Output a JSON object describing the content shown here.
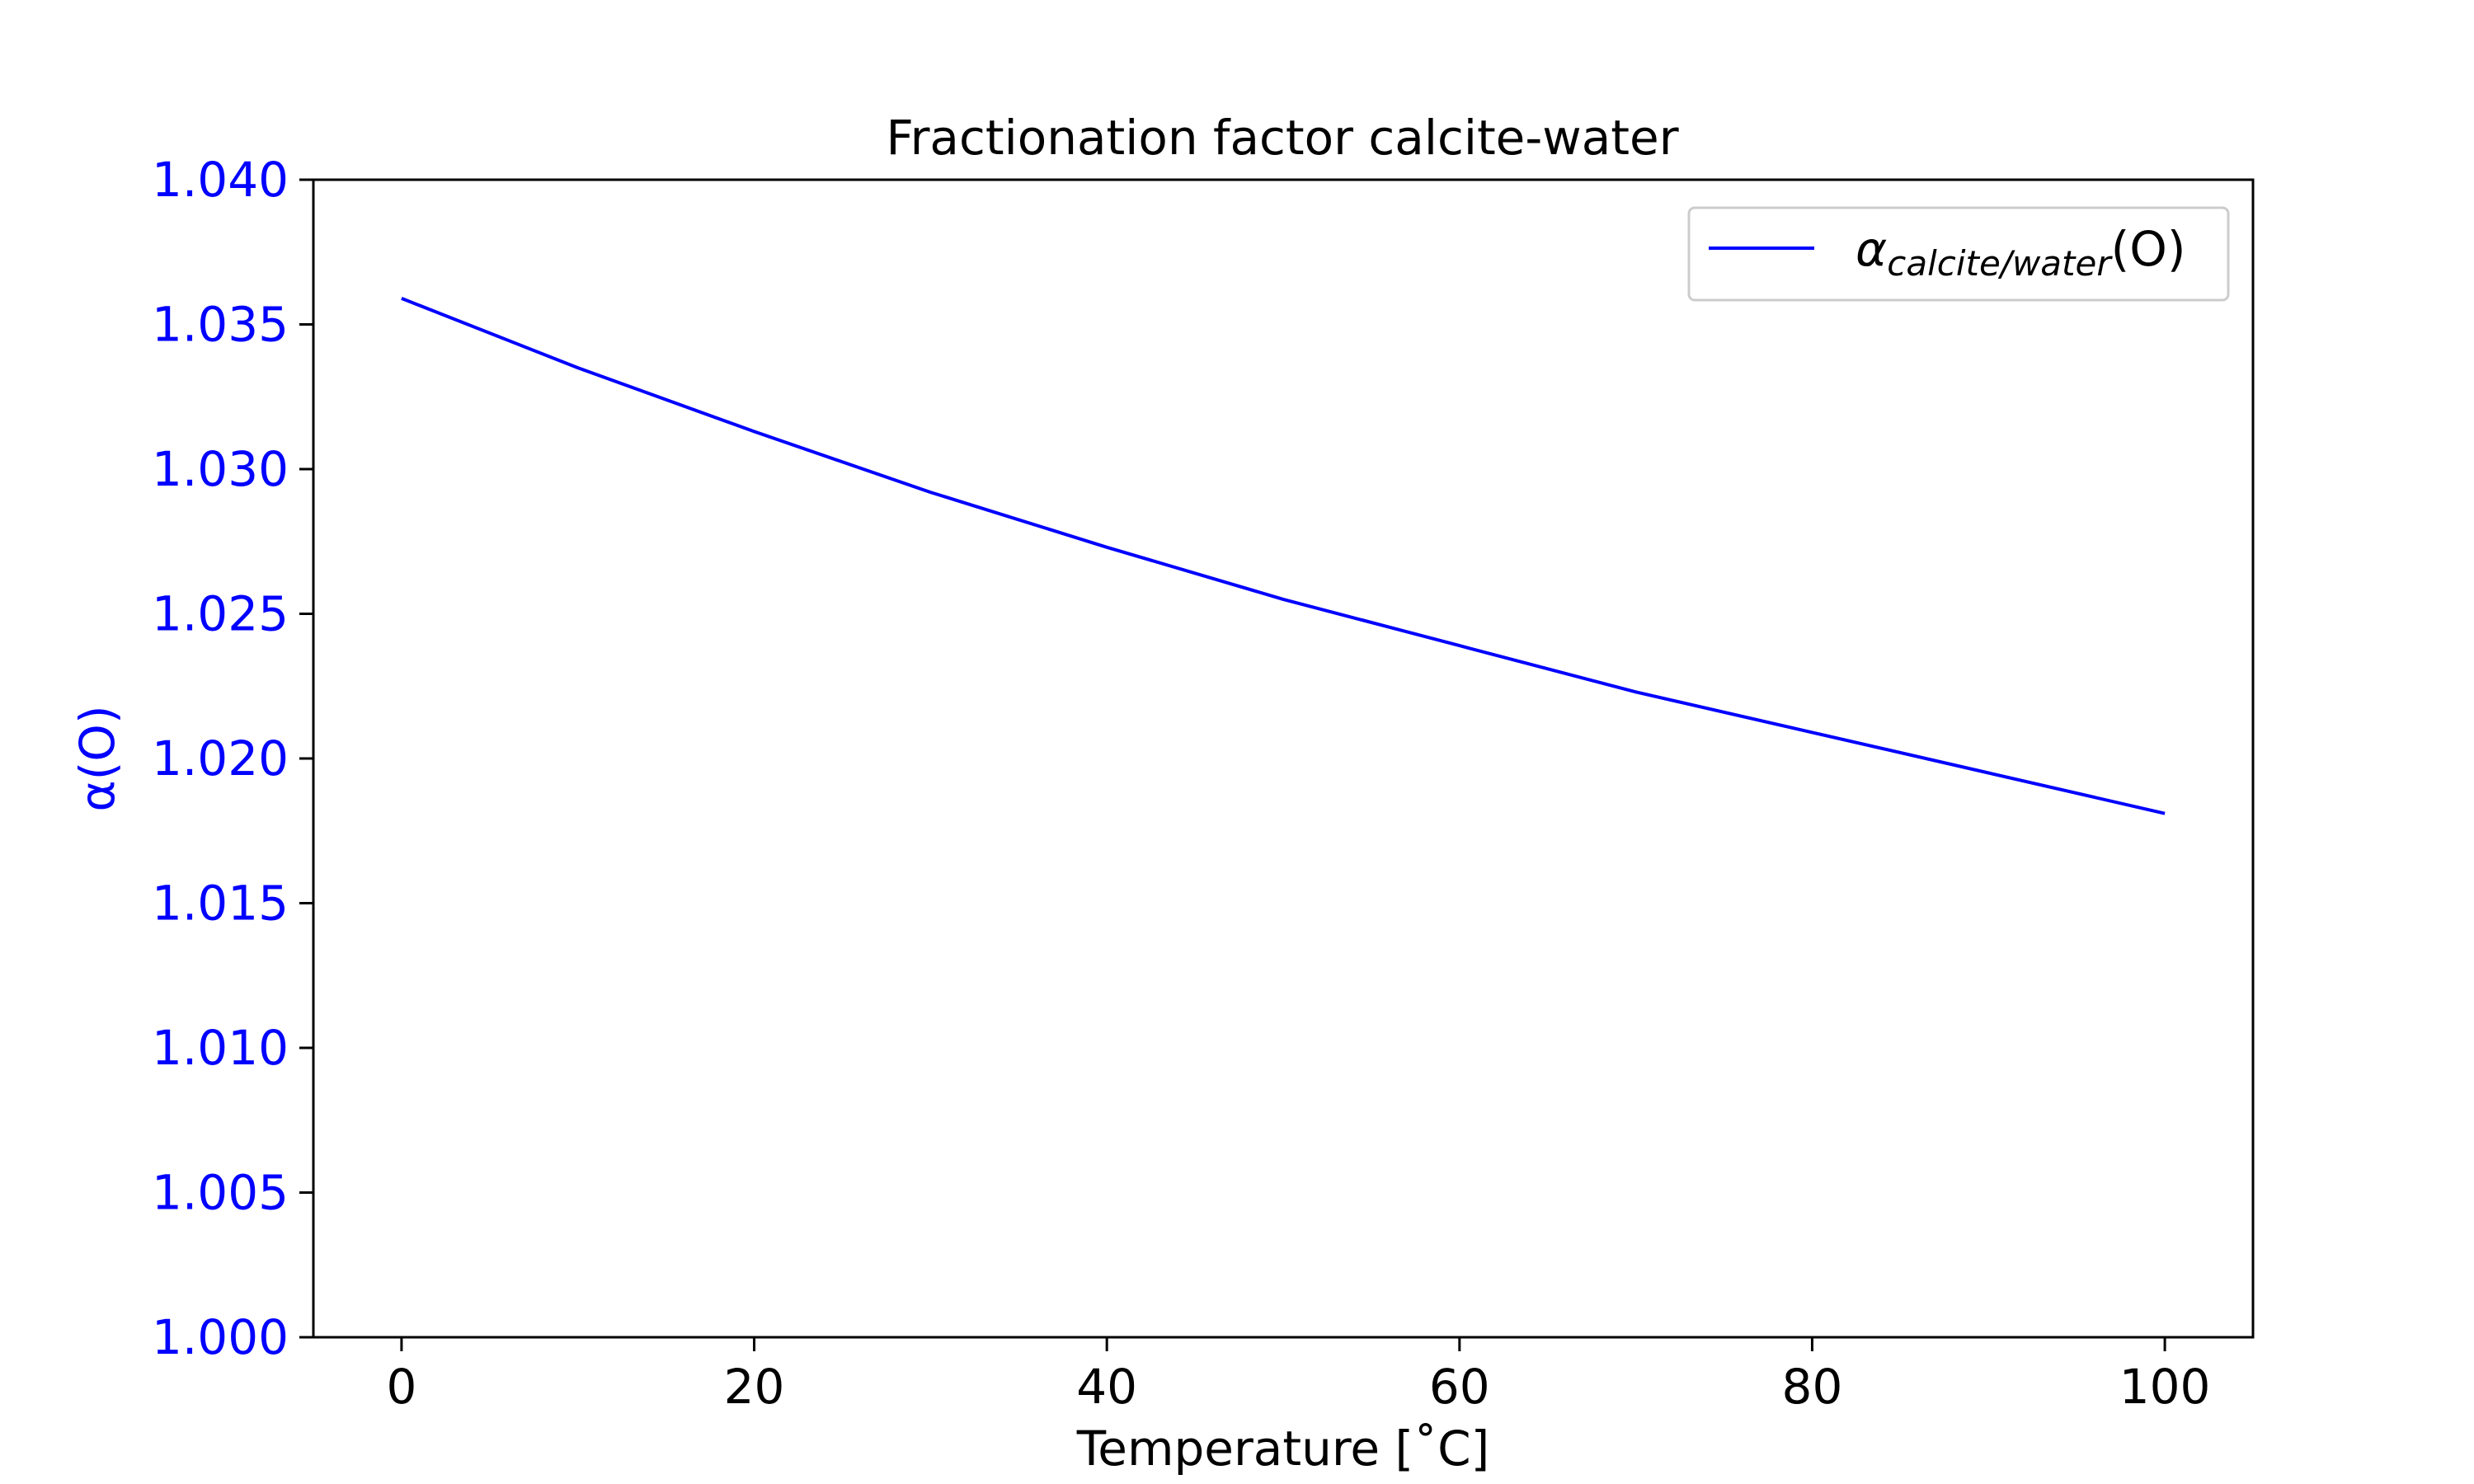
{
  "colors": {
    "series": "#0000ff",
    "yaxis_text": "#0000ff",
    "axis": "#000000",
    "text": "#000000",
    "legend_border": "#cccccc",
    "background": "#ffffff"
  },
  "chart_data": {
    "type": "line",
    "title": "Fractionation factor calcite-water",
    "xlabel": "Temperature [˚C]",
    "ylabel": "α(O)",
    "xlim": [
      -5,
      105
    ],
    "ylim": [
      1.0,
      1.04
    ],
    "grid": false,
    "legend_position": "top-right",
    "x_ticks": [
      0,
      20,
      40,
      60,
      80,
      100
    ],
    "x_tick_labels": [
      "0",
      "20",
      "40",
      "60",
      "80",
      "100"
    ],
    "y_ticks": [
      1.0,
      1.005,
      1.01,
      1.015,
      1.02,
      1.025,
      1.03,
      1.035,
      1.04
    ],
    "y_tick_labels": [
      "1.000",
      "1.005",
      "1.010",
      "1.015",
      "1.020",
      "1.025",
      "1.030",
      "1.035",
      "1.040"
    ],
    "series": [
      {
        "name": "α",
        "name_subscript": "calcite/water",
        "name_suffix": "(O)",
        "x": [
          0,
          10,
          20,
          30,
          40,
          50,
          60,
          70,
          80,
          90,
          100
        ],
        "y": [
          1.0359,
          1.0335,
          1.0313,
          1.0292,
          1.0273,
          1.0255,
          1.0239,
          1.0223,
          1.0209,
          1.0195,
          1.0181
        ]
      }
    ]
  }
}
